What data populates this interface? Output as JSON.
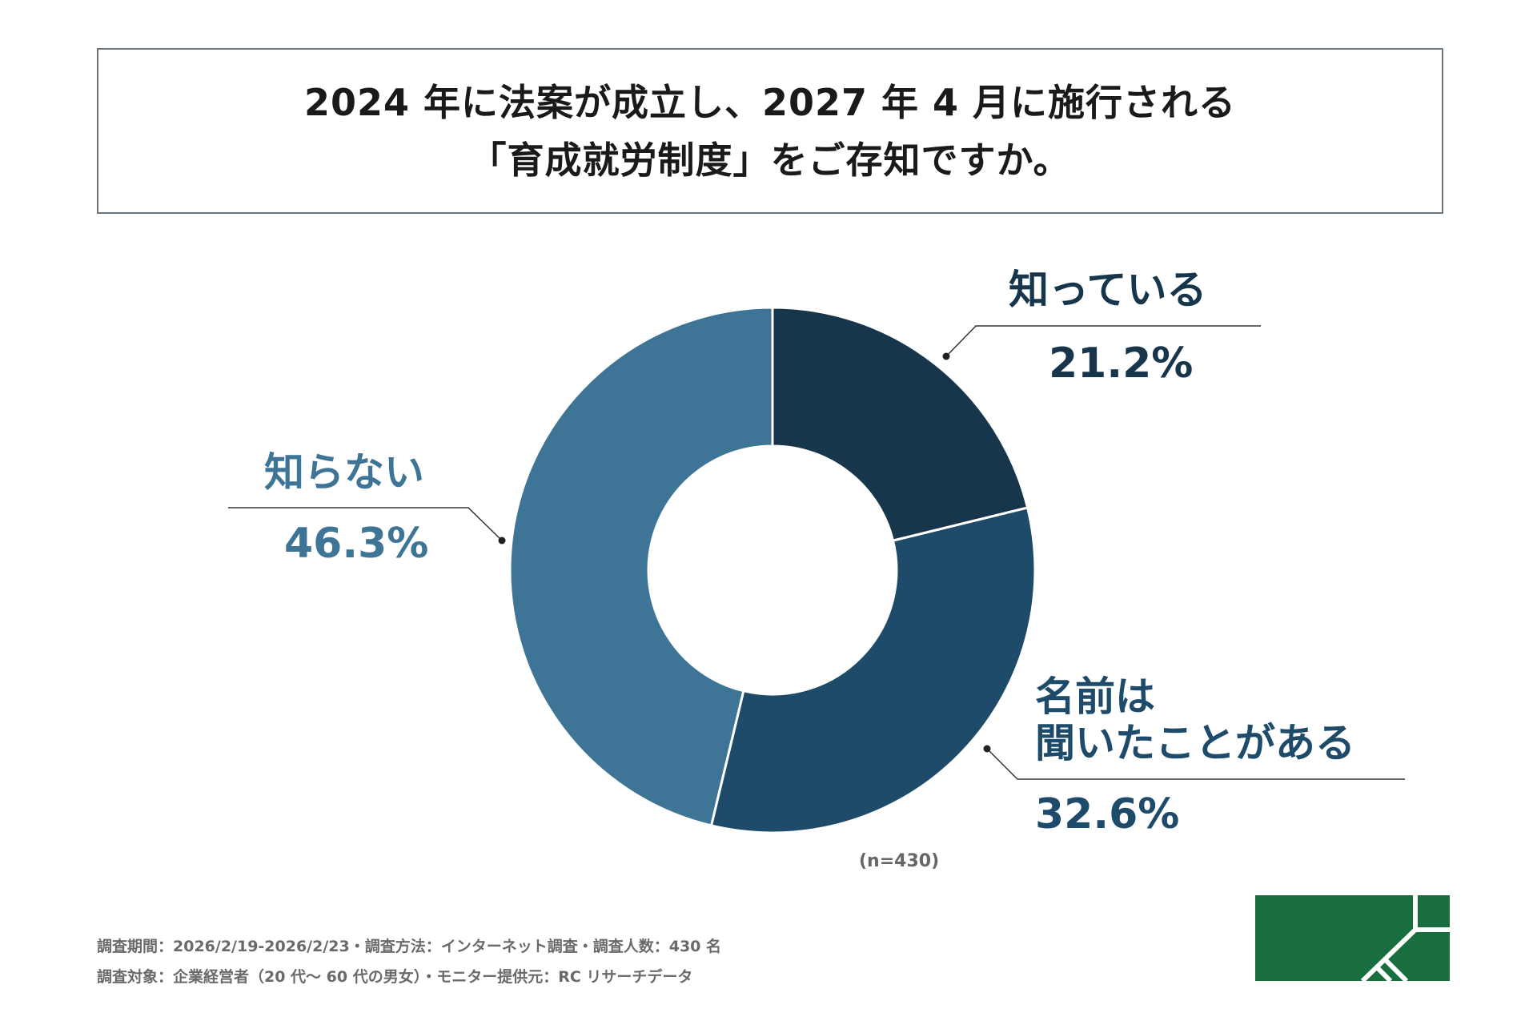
{
  "title": {
    "line1": "2024 年に法案が成立し、2027 年 4 月に施行される",
    "line2": "「育成就労制度」をご存知ですか。"
  },
  "colors": {
    "know": "#17364b",
    "heard": "#1e4b6a",
    "dont_know": "#3e7596",
    "logo": "#186e3c"
  },
  "chart_data": {
    "type": "pie",
    "variant": "donut",
    "title": "2024 年に法案が成立し、2027 年 4 月に施行される「育成就労制度」をご存知ですか。",
    "slices": [
      {
        "label": "知っている",
        "value": 21.2,
        "percent_text": "21.2%"
      },
      {
        "label": "名前は聞いたことがある",
        "value": 32.6,
        "percent_text": "32.6%"
      },
      {
        "label": "知らない",
        "value": 46.3,
        "percent_text": "46.3%"
      }
    ],
    "label_lines": {
      "heard": [
        "名前は",
        "聞いたことがある"
      ]
    },
    "sample_note": "(n=430)"
  },
  "footer": {
    "line1": "調査期間：2026/2/19-2026/2/23・調査方法：インターネット調査・調査人数：430 名",
    "line2": "調査対象：企業経営者（20 代～ 60 代の男女）・モニター提供元：RC リサーチデータ"
  },
  "logo": {
    "icon": "company-logo-icon"
  }
}
